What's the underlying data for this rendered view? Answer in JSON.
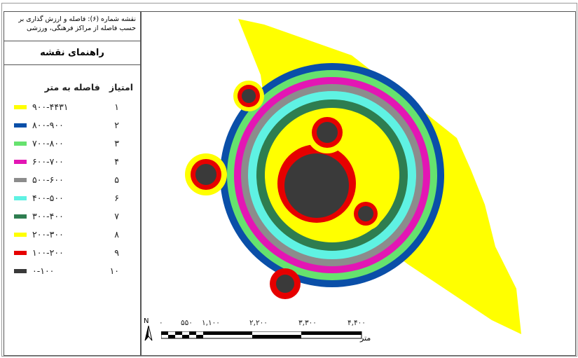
{
  "legend": {
    "title_line1": "نقشه شماره (۶): فاصله و ارزش گذاری بر",
    "title_line2": "حسب فاصله از مراکز فرهنگی، ورزشی",
    "guide_title": "راهنمای نقشه",
    "header_score": "امتیاز",
    "header_distance": "فاصله به متر",
    "items": [
      {
        "range": "۹۰۰-۴۴۳۱",
        "score": "۱",
        "color": "#ffff00"
      },
      {
        "range": "۸۰۰-۹۰۰",
        "score": "۲",
        "color": "#0a4fa8"
      },
      {
        "range": "۷۰۰-۸۰۰",
        "score": "۳",
        "color": "#66e26e"
      },
      {
        "range": "۶۰۰-۷۰۰",
        "score": "۴",
        "color": "#e316b4"
      },
      {
        "range": "۵۰۰-۶۰۰",
        "score": "۵",
        "color": "#8c8c8c"
      },
      {
        "range": "۴۰۰-۵۰۰",
        "score": "۶",
        "color": "#5ff2e3"
      },
      {
        "range": "۳۰۰-۴۰۰",
        "score": "۷",
        "color": "#2e7d50"
      },
      {
        "range": "۲۰۰-۳۰۰",
        "score": "۸",
        "color": "#ffff00"
      },
      {
        "range": "۱۰۰-۲۰۰",
        "score": "۹",
        "color": "#e60000"
      },
      {
        "range": "۰-۱۰۰",
        "score": "۱۰",
        "color": "#3a3a3a"
      }
    ]
  },
  "scalebar": {
    "labels": [
      "۰",
      "۵۵۰",
      "۱,۱۰۰",
      "۲,۲۰۰",
      "۳,۳۰۰",
      "۴,۴۰۰"
    ],
    "unit": "متر"
  },
  "north_label": "N"
}
